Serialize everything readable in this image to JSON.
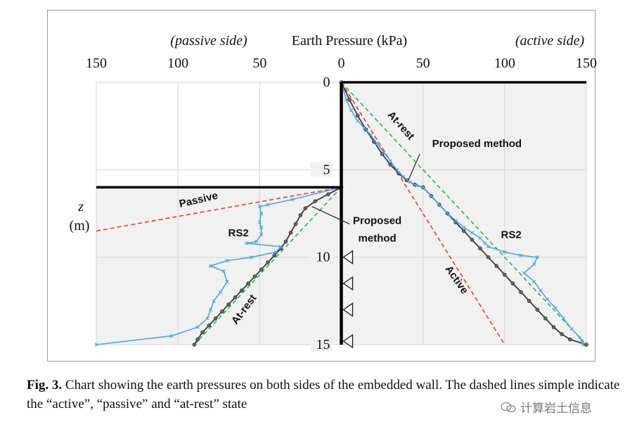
{
  "chart_data": {
    "type": "line",
    "title": "Earth Pressure (kPa)",
    "left_label": "(passive side)",
    "right_label": "(active side)",
    "ylabel_var": "z",
    "ylabel_unit": "(m)",
    "x_ticks": [
      {
        "value": -150,
        "label": "150"
      },
      {
        "value": -100,
        "label": "100"
      },
      {
        "value": -50,
        "label": "50"
      },
      {
        "value": 0,
        "label": "0"
      },
      {
        "value": 50,
        "label": "50"
      },
      {
        "value": 100,
        "label": "100"
      },
      {
        "value": 150,
        "label": "150"
      }
    ],
    "y_ticks": [
      {
        "value": 0,
        "label": "0"
      },
      {
        "value": 5,
        "label": "5"
      },
      {
        "value": 10,
        "label": "10"
      },
      {
        "value": 15,
        "label": "15"
      }
    ],
    "xlim": [
      -150,
      150
    ],
    "ylim": [
      0,
      15
    ],
    "excavation_depth": 6,
    "support_depths": [
      10,
      11.5,
      13,
      14.8
    ],
    "colors": {
      "wall": "#000000",
      "active": "#e8392e",
      "at_rest": "#2fae4d",
      "proposed": "#3a3a3a",
      "rs2": "#4aa8dc",
      "shade": "#f1f1f1",
      "grid": "#d4d4d4"
    },
    "series": [
      {
        "name": "Active",
        "style": "dashed",
        "color_key": "active",
        "points": [
          [
            0,
            0
          ],
          [
            100,
            15
          ]
        ]
      },
      {
        "name": "Passive",
        "style": "dashed",
        "color_key": "active",
        "points": [
          [
            -150,
            8.5
          ],
          [
            0,
            6
          ]
        ]
      },
      {
        "name": "At-rest (active side)",
        "style": "dashed",
        "color_key": "at_rest",
        "points": [
          [
            0,
            0
          ],
          [
            150,
            15
          ]
        ]
      },
      {
        "name": "At-rest (passive side)",
        "style": "dashed",
        "color_key": "at_rest",
        "points": [
          [
            0,
            6
          ],
          [
            -90,
            15
          ]
        ]
      },
      {
        "name": "Proposed method (active side)",
        "style": "solid-markers",
        "color_key": "proposed",
        "points": [
          [
            0,
            0
          ],
          [
            5,
            1
          ],
          [
            10,
            1.9
          ],
          [
            15,
            2.7
          ],
          [
            20,
            3.4
          ],
          [
            25,
            4.1
          ],
          [
            30,
            4.7
          ],
          [
            35,
            5.2
          ],
          [
            40,
            5.6
          ],
          [
            45,
            5.85
          ],
          [
            50,
            6
          ],
          [
            55,
            6.5
          ],
          [
            60,
            7
          ],
          [
            65,
            7.5
          ],
          [
            70,
            8
          ],
          [
            75,
            8.5
          ],
          [
            80,
            9
          ],
          [
            85,
            9.5
          ],
          [
            90,
            10
          ],
          [
            95,
            10.5
          ],
          [
            100,
            11
          ],
          [
            105,
            11.5
          ],
          [
            110,
            12
          ],
          [
            115,
            12.5
          ],
          [
            120,
            13
          ],
          [
            125,
            13.5
          ],
          [
            130,
            14
          ],
          [
            135,
            14.4
          ],
          [
            140,
            14.7
          ],
          [
            150,
            15
          ]
        ]
      },
      {
        "name": "Proposed method (passive side)",
        "style": "solid-markers",
        "color_key": "proposed",
        "points": [
          [
            0,
            6
          ],
          [
            -8,
            6.4
          ],
          [
            -16,
            6.8
          ],
          [
            -22,
            7.2
          ],
          [
            -25,
            7.6
          ],
          [
            -28,
            8.1
          ],
          [
            -31,
            8.6
          ],
          [
            -34,
            9.1
          ],
          [
            -37,
            9.5
          ],
          [
            -41,
            9.9
          ],
          [
            -45,
            10.3
          ],
          [
            -49,
            10.7
          ],
          [
            -53,
            11.1
          ],
          [
            -57,
            11.5
          ],
          [
            -61,
            11.9
          ],
          [
            -65,
            12.3
          ],
          [
            -69,
            12.7
          ],
          [
            -73,
            13.1
          ],
          [
            -77,
            13.5
          ],
          [
            -81,
            13.9
          ],
          [
            -85,
            14.3
          ],
          [
            -88,
            14.7
          ],
          [
            -90,
            15
          ]
        ]
      },
      {
        "name": "RS2 (active side)",
        "style": "solid-x",
        "color_key": "rs2",
        "points": [
          [
            0,
            0
          ],
          [
            3,
            1
          ],
          [
            6,
            1.6
          ],
          [
            10,
            2.2
          ],
          [
            14,
            2.6
          ],
          [
            18,
            3
          ],
          [
            22,
            3.5
          ],
          [
            26,
            4
          ],
          [
            30,
            4.5
          ],
          [
            34,
            5
          ],
          [
            38,
            5.4
          ],
          [
            42,
            5.7
          ],
          [
            46,
            5.9
          ],
          [
            50,
            6
          ],
          [
            55,
            6.5
          ],
          [
            60,
            7
          ],
          [
            65,
            7.5
          ],
          [
            70,
            7.9
          ],
          [
            75,
            8.3
          ],
          [
            80,
            8.6
          ],
          [
            85,
            8.9
          ],
          [
            88,
            9.2
          ],
          [
            90,
            9.4
          ],
          [
            100,
            9.7
          ],
          [
            110,
            9.9
          ],
          [
            120,
            10
          ],
          [
            118,
            10.4
          ],
          [
            112,
            10.9
          ],
          [
            118,
            11.4
          ],
          [
            122,
            11.9
          ],
          [
            126,
            12.4
          ],
          [
            131,
            12.9
          ],
          [
            136,
            13.5
          ],
          [
            141,
            14.1
          ],
          [
            146,
            14.6
          ],
          [
            148,
            15
          ]
        ]
      },
      {
        "name": "RS2 (passive side)",
        "style": "solid-x",
        "color_key": "rs2",
        "points": [
          [
            0,
            6
          ],
          [
            -30,
            6.7
          ],
          [
            -45,
            7
          ],
          [
            -50,
            7.1
          ],
          [
            -49,
            7.5
          ],
          [
            -50,
            8
          ],
          [
            -49,
            8.3
          ],
          [
            -49,
            8.7
          ],
          [
            -52,
            9.1
          ],
          [
            -58,
            9.2
          ],
          [
            -37,
            9.4
          ],
          [
            -40,
            9.7
          ],
          [
            -55,
            10
          ],
          [
            -70,
            10.2
          ],
          [
            -80,
            10.5
          ],
          [
            -72,
            10.8
          ],
          [
            -70,
            11.4
          ],
          [
            -74,
            12
          ],
          [
            -78,
            12.5
          ],
          [
            -80,
            13
          ],
          [
            -82,
            13.5
          ],
          [
            -88,
            14
          ],
          [
            -104,
            14.5
          ],
          [
            -150,
            15
          ]
        ]
      }
    ],
    "annotations": [
      {
        "text": "At-rest",
        "x": 35,
        "y": 2.6,
        "rotate": 48,
        "bold": true
      },
      {
        "text": "Proposed method",
        "x": 83,
        "y": 3.7,
        "rotate": 0,
        "bold": true
      },
      {
        "text": "Active",
        "x": 69,
        "y": 11.4,
        "rotate": 55,
        "bold": true
      },
      {
        "text": "RS2",
        "x": 104,
        "y": 8.9,
        "rotate": 0,
        "bold": true
      },
      {
        "text": "Passive",
        "x": -87,
        "y": 6.9,
        "rotate": -13,
        "bold": true
      },
      {
        "text": "RS2",
        "x": -63,
        "y": 8.8,
        "rotate": 0,
        "bold": true
      },
      {
        "text": "Proposed",
        "x": 22,
        "y": 8.1,
        "rotate": 0,
        "bold": true
      },
      {
        "text": "method",
        "x": 22,
        "y": 9.1,
        "rotate": 0,
        "bold": true
      },
      {
        "text": "At-rest",
        "x": -58,
        "y": 13.1,
        "rotate": -53,
        "bold": true
      }
    ]
  },
  "caption": {
    "fig_label": "Fig. 3.",
    "text": "Chart showing the earth pressures on both sides of the embedded wall. The dashed lines simple indicate the “active”, “passive” and “at-rest” state"
  },
  "watermark": "计算岩土信息"
}
